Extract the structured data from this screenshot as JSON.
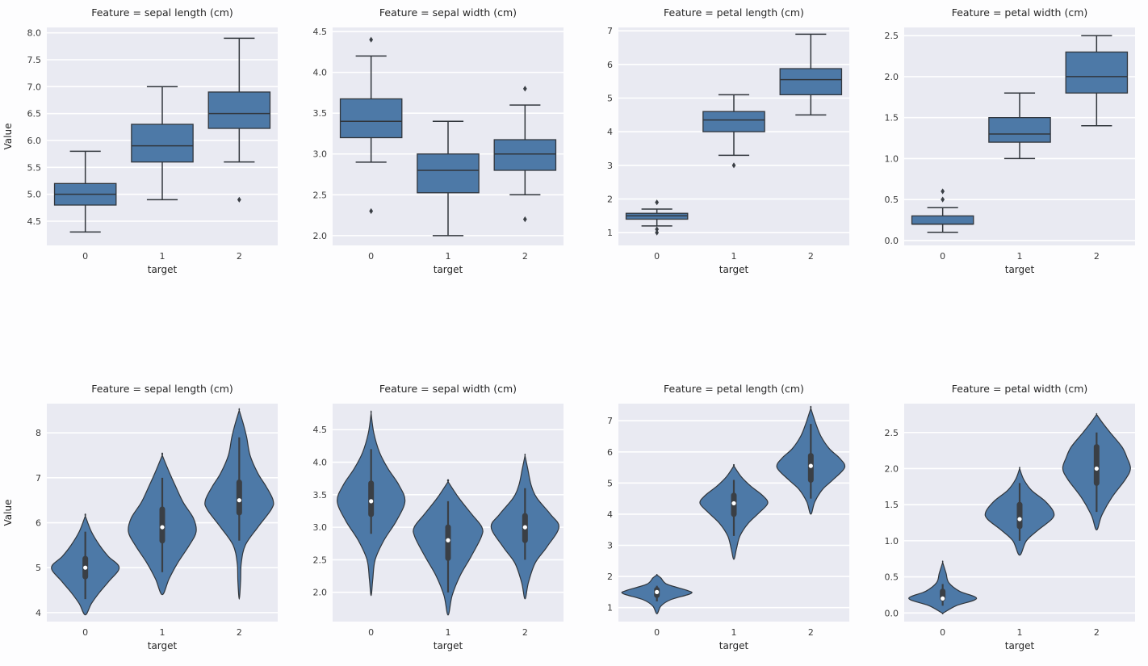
{
  "style": {
    "plot_bg": "#e9eaf2",
    "grid_color": "#ffffff",
    "box_fill": "#4d79a7",
    "edge_color": "#31363c",
    "inner_color": "#3a3f45",
    "median_dot": "#ffffff",
    "text_color": "#262626",
    "tick_color": "#3a3a3a"
  },
  "chart_data": [
    {
      "type": "box",
      "title": "Feature = sepal length (cm)",
      "xlabel": "target",
      "ylabel": "Value",
      "categories": [
        "0",
        "1",
        "2"
      ],
      "ylim": [
        4.05,
        8.1
      ],
      "ytick_values": [
        4.5,
        5.0,
        5.5,
        6.0,
        6.5,
        7.0,
        7.5,
        8.0
      ],
      "ytick_labels": [
        "4.5",
        "5.0",
        "5.5",
        "6.0",
        "6.5",
        "7.0",
        "7.5",
        "8.0"
      ],
      "series": [
        {
          "whislo": 4.3,
          "q1": 4.8,
          "med": 5.0,
          "q3": 5.2,
          "whishi": 5.8,
          "outliers": []
        },
        {
          "whislo": 4.9,
          "q1": 5.6,
          "med": 5.9,
          "q3": 6.3,
          "whishi": 7.0,
          "outliers": []
        },
        {
          "whislo": 5.6,
          "q1": 6.225,
          "med": 6.5,
          "q3": 6.9,
          "whishi": 7.9,
          "outliers": [
            4.9
          ]
        }
      ]
    },
    {
      "type": "box",
      "title": "Feature = sepal width (cm)",
      "xlabel": "target",
      "ylabel": "",
      "categories": [
        "0",
        "1",
        "2"
      ],
      "ylim": [
        1.88,
        4.55
      ],
      "ytick_values": [
        2.0,
        2.5,
        3.0,
        3.5,
        4.0,
        4.5
      ],
      "ytick_labels": [
        "2.0",
        "2.5",
        "3.0",
        "3.5",
        "4.0",
        "4.5"
      ],
      "series": [
        {
          "whislo": 2.9,
          "q1": 3.2,
          "med": 3.4,
          "q3": 3.675,
          "whishi": 4.2,
          "outliers": [
            4.4,
            2.3
          ]
        },
        {
          "whislo": 2.0,
          "q1": 2.525,
          "med": 2.8,
          "q3": 3.0,
          "whishi": 3.4,
          "outliers": []
        },
        {
          "whislo": 2.5,
          "q1": 2.8,
          "med": 3.0,
          "q3": 3.175,
          "whishi": 3.6,
          "outliers": [
            3.8,
            2.2
          ]
        }
      ]
    },
    {
      "type": "box",
      "title": "Feature = petal length (cm)",
      "xlabel": "target",
      "ylabel": "",
      "categories": [
        "0",
        "1",
        "2"
      ],
      "ylim": [
        0.62,
        7.1
      ],
      "ytick_values": [
        1,
        2,
        3,
        4,
        5,
        6,
        7
      ],
      "ytick_labels": [
        "1",
        "2",
        "3",
        "4",
        "5",
        "6",
        "7"
      ],
      "series": [
        {
          "whislo": 1.2,
          "q1": 1.4,
          "med": 1.5,
          "q3": 1.575,
          "whishi": 1.7,
          "outliers": [
            1.9,
            1.1,
            1.0
          ]
        },
        {
          "whislo": 3.3,
          "q1": 4.0,
          "med": 4.35,
          "q3": 4.6,
          "whishi": 5.1,
          "outliers": [
            3.0
          ]
        },
        {
          "whislo": 4.5,
          "q1": 5.1,
          "med": 5.55,
          "q3": 5.875,
          "whishi": 6.9,
          "outliers": []
        }
      ]
    },
    {
      "type": "box",
      "title": "Feature = petal width (cm)",
      "xlabel": "target",
      "ylabel": "",
      "categories": [
        "0",
        "1",
        "2"
      ],
      "ylim": [
        -0.06,
        2.6
      ],
      "ytick_values": [
        0.0,
        0.5,
        1.0,
        1.5,
        2.0,
        2.5
      ],
      "ytick_labels": [
        "0.0",
        "0.5",
        "1.0",
        "1.5",
        "2.0",
        "2.5"
      ],
      "series": [
        {
          "whislo": 0.1,
          "q1": 0.2,
          "med": 0.2,
          "q3": 0.3,
          "whishi": 0.4,
          "outliers": [
            0.5,
            0.6
          ]
        },
        {
          "whislo": 1.0,
          "q1": 1.2,
          "med": 1.3,
          "q3": 1.5,
          "whishi": 1.8,
          "outliers": []
        },
        {
          "whislo": 1.4,
          "q1": 1.8,
          "med": 2.0,
          "q3": 2.3,
          "whishi": 2.5,
          "outliers": []
        }
      ]
    },
    {
      "type": "violin",
      "title": "Feature = sepal length (cm)",
      "xlabel": "target",
      "ylabel": "Value",
      "categories": [
        "0",
        "1",
        "2"
      ],
      "ylim": [
        3.8,
        8.65
      ],
      "ytick_values": [
        4,
        5,
        6,
        7,
        8
      ],
      "ytick_labels": [
        "4",
        "5",
        "6",
        "7",
        "8"
      ],
      "series": [
        {
          "whislo": 4.3,
          "q1": 4.8,
          "med": 5.0,
          "q3": 5.2,
          "whishi": 5.8,
          "shape": [
            [
              3.95,
              0
            ],
            [
              4.2,
              0.18
            ],
            [
              4.45,
              0.42
            ],
            [
              4.7,
              0.7
            ],
            [
              5.0,
              1.0
            ],
            [
              5.25,
              0.68
            ],
            [
              5.5,
              0.42
            ],
            [
              5.8,
              0.18
            ],
            [
              6.15,
              0
            ]
          ]
        },
        {
          "whislo": 4.9,
          "q1": 5.6,
          "med": 5.9,
          "q3": 6.3,
          "whishi": 7.0,
          "shape": [
            [
              4.4,
              0
            ],
            [
              4.75,
              0.2
            ],
            [
              5.1,
              0.45
            ],
            [
              5.5,
              0.8
            ],
            [
              5.8,
              1.0
            ],
            [
              6.1,
              0.92
            ],
            [
              6.45,
              0.62
            ],
            [
              6.8,
              0.4
            ],
            [
              7.1,
              0.22
            ],
            [
              7.5,
              0
            ]
          ]
        },
        {
          "whislo": 5.6,
          "q1": 6.225,
          "med": 6.5,
          "q3": 6.9,
          "whishi": 7.9,
          "shape": [
            [
              4.3,
              0
            ],
            [
              4.7,
              0.04
            ],
            [
              5.1,
              0.06
            ],
            [
              5.5,
              0.18
            ],
            [
              5.9,
              0.55
            ],
            [
              6.3,
              0.95
            ],
            [
              6.5,
              1.0
            ],
            [
              6.8,
              0.8
            ],
            [
              7.1,
              0.55
            ],
            [
              7.5,
              0.32
            ],
            [
              7.9,
              0.22
            ],
            [
              8.2,
              0.12
            ],
            [
              8.5,
              0
            ]
          ]
        }
      ]
    },
    {
      "type": "violin",
      "title": "Feature = sepal width (cm)",
      "xlabel": "target",
      "ylabel": "",
      "categories": [
        "0",
        "1",
        "2"
      ],
      "ylim": [
        1.55,
        4.9
      ],
      "ytick_values": [
        2.0,
        2.5,
        3.0,
        3.5,
        4.0,
        4.5
      ],
      "ytick_labels": [
        "2.0",
        "2.5",
        "3.0",
        "3.5",
        "4.0",
        "4.5"
      ],
      "series": [
        {
          "whislo": 2.9,
          "q1": 3.2,
          "med": 3.4,
          "q3": 3.675,
          "whishi": 4.2,
          "shape": [
            [
              1.95,
              0
            ],
            [
              2.2,
              0.05
            ],
            [
              2.5,
              0.12
            ],
            [
              2.8,
              0.38
            ],
            [
              3.1,
              0.75
            ],
            [
              3.4,
              1.0
            ],
            [
              3.65,
              0.82
            ],
            [
              3.9,
              0.5
            ],
            [
              4.15,
              0.25
            ],
            [
              4.45,
              0.08
            ],
            [
              4.75,
              0
            ]
          ]
        },
        {
          "whislo": 2.0,
          "q1": 2.525,
          "med": 2.8,
          "q3": 3.0,
          "whishi": 3.4,
          "shape": [
            [
              1.65,
              0
            ],
            [
              1.95,
              0.12
            ],
            [
              2.25,
              0.35
            ],
            [
              2.55,
              0.68
            ],
            [
              2.85,
              0.98
            ],
            [
              3.0,
              1.0
            ],
            [
              3.2,
              0.7
            ],
            [
              3.45,
              0.32
            ],
            [
              3.7,
              0
            ]
          ]
        },
        {
          "whislo": 2.5,
          "q1": 2.8,
          "med": 3.0,
          "q3": 3.175,
          "whishi": 3.6,
          "shape": [
            [
              1.9,
              0
            ],
            [
              2.15,
              0.1
            ],
            [
              2.45,
              0.3
            ],
            [
              2.7,
              0.65
            ],
            [
              3.0,
              1.0
            ],
            [
              3.2,
              0.75
            ],
            [
              3.45,
              0.35
            ],
            [
              3.65,
              0.18
            ],
            [
              3.9,
              0.08
            ],
            [
              4.1,
              0
            ]
          ]
        }
      ]
    },
    {
      "type": "violin",
      "title": "Feature = petal length (cm)",
      "xlabel": "target",
      "ylabel": "",
      "categories": [
        "0",
        "1",
        "2"
      ],
      "ylim": [
        0.55,
        7.55
      ],
      "ytick_values": [
        1,
        2,
        3,
        4,
        5,
        6,
        7
      ],
      "ytick_labels": [
        "1",
        "2",
        "3",
        "4",
        "5",
        "6",
        "7"
      ],
      "series": [
        {
          "whislo": 1.2,
          "q1": 1.4,
          "med": 1.5,
          "q3": 1.575,
          "whishi": 1.7,
          "shape": [
            [
              0.8,
              0
            ],
            [
              1.05,
              0.12
            ],
            [
              1.25,
              0.4
            ],
            [
              1.45,
              1.0
            ],
            [
              1.55,
              0.9
            ],
            [
              1.75,
              0.3
            ],
            [
              1.95,
              0.12
            ],
            [
              2.05,
              0
            ]
          ]
        },
        {
          "whislo": 3.3,
          "q1": 4.0,
          "med": 4.35,
          "q3": 4.6,
          "whishi": 5.1,
          "shape": [
            [
              2.55,
              0
            ],
            [
              2.9,
              0.08
            ],
            [
              3.3,
              0.18
            ],
            [
              3.7,
              0.42
            ],
            [
              4.05,
              0.75
            ],
            [
              4.35,
              1.0
            ],
            [
              4.6,
              0.85
            ],
            [
              4.9,
              0.5
            ],
            [
              5.2,
              0.22
            ],
            [
              5.55,
              0
            ]
          ]
        },
        {
          "whislo": 4.5,
          "q1": 5.1,
          "med": 5.55,
          "q3": 5.875,
          "whishi": 6.9,
          "shape": [
            [
              4.0,
              0
            ],
            [
              4.4,
              0.12
            ],
            [
              4.8,
              0.35
            ],
            [
              5.1,
              0.65
            ],
            [
              5.5,
              1.0
            ],
            [
              5.8,
              0.85
            ],
            [
              6.1,
              0.55
            ],
            [
              6.5,
              0.3
            ],
            [
              6.9,
              0.15
            ],
            [
              7.4,
              0
            ]
          ]
        }
      ]
    },
    {
      "type": "violin",
      "title": "Feature = petal width (cm)",
      "xlabel": "target",
      "ylabel": "",
      "categories": [
        "0",
        "1",
        "2"
      ],
      "ylim": [
        -0.12,
        2.9
      ],
      "ytick_values": [
        0.0,
        0.5,
        1.0,
        1.5,
        2.0,
        2.5
      ],
      "ytick_labels": [
        "0.0",
        "0.5",
        "1.0",
        "1.5",
        "2.0",
        "2.5"
      ],
      "series": [
        {
          "whislo": 0.1,
          "q1": 0.2,
          "med": 0.2,
          "q3": 0.3,
          "whishi": 0.4,
          "shape": [
            [
              0.0,
              0.02
            ],
            [
              0.1,
              0.4
            ],
            [
              0.2,
              1.0
            ],
            [
              0.3,
              0.5
            ],
            [
              0.42,
              0.18
            ],
            [
              0.55,
              0.1
            ],
            [
              0.7,
              0
            ]
          ]
        },
        {
          "whislo": 1.0,
          "q1": 1.2,
          "med": 1.3,
          "q3": 1.5,
          "whishi": 1.8,
          "shape": [
            [
              0.8,
              0
            ],
            [
              1.0,
              0.2
            ],
            [
              1.15,
              0.55
            ],
            [
              1.3,
              0.95
            ],
            [
              1.4,
              1.0
            ],
            [
              1.55,
              0.75
            ],
            [
              1.7,
              0.35
            ],
            [
              1.85,
              0.12
            ],
            [
              2.0,
              0
            ]
          ]
        },
        {
          "whislo": 1.4,
          "q1": 1.8,
          "med": 2.0,
          "q3": 2.3,
          "whishi": 2.5,
          "shape": [
            [
              1.15,
              0
            ],
            [
              1.35,
              0.15
            ],
            [
              1.6,
              0.45
            ],
            [
              1.85,
              0.85
            ],
            [
              2.0,
              1.0
            ],
            [
              2.15,
              0.9
            ],
            [
              2.3,
              0.75
            ],
            [
              2.5,
              0.4
            ],
            [
              2.65,
              0.15
            ],
            [
              2.75,
              0
            ]
          ]
        }
      ]
    }
  ]
}
